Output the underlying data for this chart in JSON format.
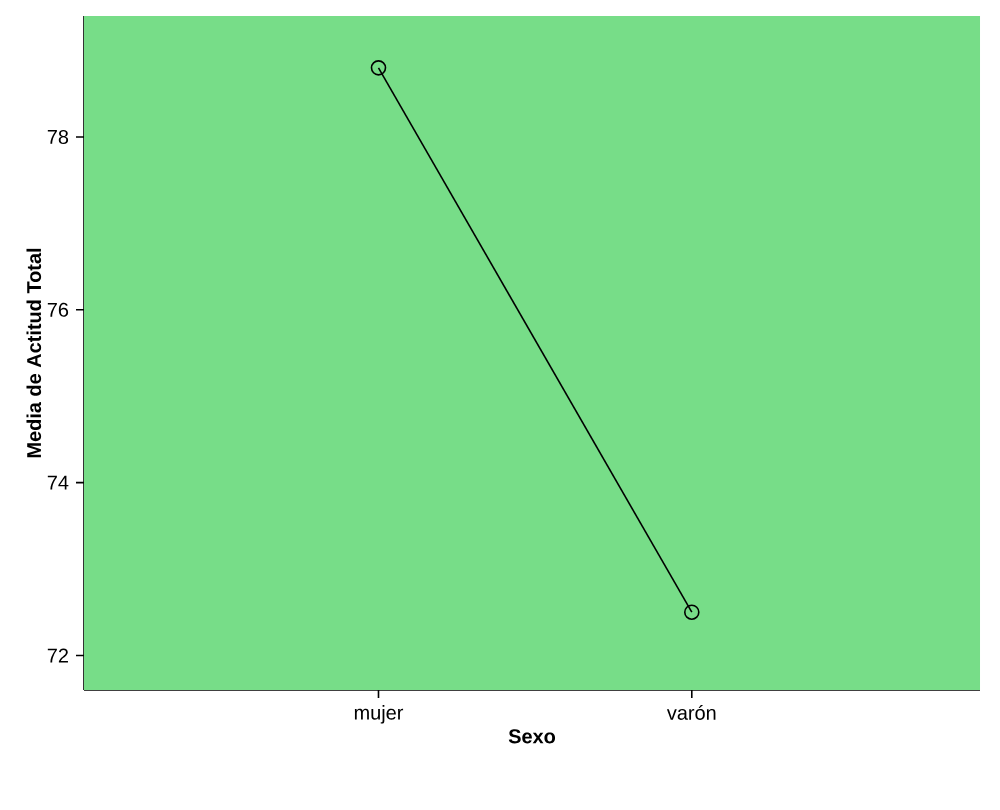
{
  "chart_data": {
    "type": "line",
    "xlabel": "Sexo",
    "ylabel": "Media de Actitud Total",
    "categories": [
      "mujer",
      "varón"
    ],
    "values": [
      78.8,
      72.5
    ],
    "color": "#000000",
    "marker": "circle",
    "ylim": [
      71.6,
      79.4
    ],
    "yticks": [
      72,
      74,
      76,
      78
    ]
  }
}
